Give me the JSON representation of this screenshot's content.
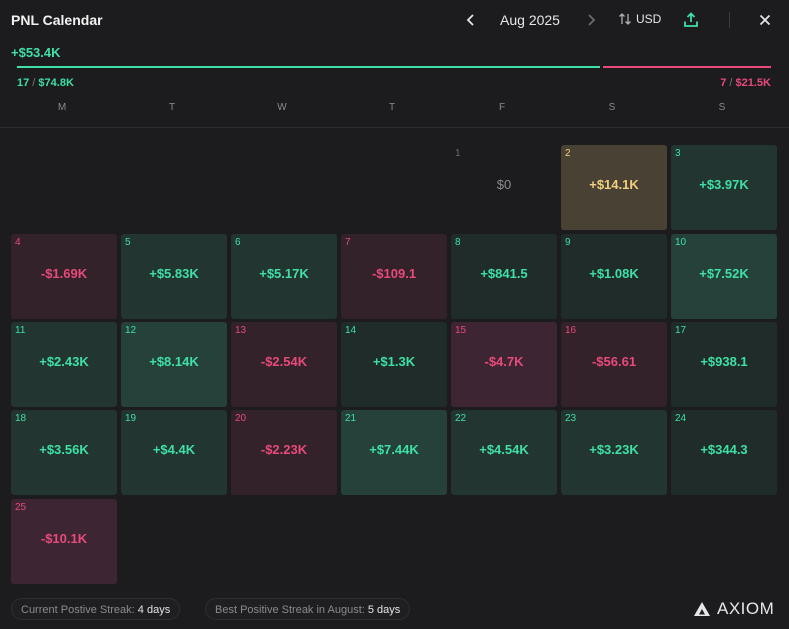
{
  "header": {
    "title": "PNL Calendar",
    "month": "Aug 2025",
    "currency": "USD"
  },
  "summary": {
    "total": "+$53.4K",
    "win_days": "17",
    "win_amount": "$74.8K",
    "loss_days": "7",
    "loss_amount": "$21.5K",
    "win_fraction": 0.777
  },
  "weekdays": [
    "M",
    "T",
    "W",
    "T",
    "F",
    "S",
    "S"
  ],
  "days": [
    {
      "day": "1",
      "value": "$0",
      "kind": "zero"
    },
    {
      "day": "2",
      "value": "+$14.1K",
      "kind": "gold"
    },
    {
      "day": "3",
      "value": "+$3.97K",
      "kind": "pos"
    },
    {
      "day": "4",
      "value": "-$1.69K",
      "kind": "neg"
    },
    {
      "day": "5",
      "value": "+$5.83K",
      "kind": "pos"
    },
    {
      "day": "6",
      "value": "+$5.17K",
      "kind": "pos"
    },
    {
      "day": "7",
      "value": "-$109.1",
      "kind": "neg"
    },
    {
      "day": "8",
      "value": "+$841.5",
      "kind": "pos"
    },
    {
      "day": "9",
      "value": "+$1.08K",
      "kind": "pos"
    },
    {
      "day": "10",
      "value": "+$7.52K",
      "kind": "pos"
    },
    {
      "day": "11",
      "value": "+$2.43K",
      "kind": "pos"
    },
    {
      "day": "12",
      "value": "+$8.14K",
      "kind": "pos"
    },
    {
      "day": "13",
      "value": "-$2.54K",
      "kind": "neg"
    },
    {
      "day": "14",
      "value": "+$1.3K",
      "kind": "pos"
    },
    {
      "day": "15",
      "value": "-$4.7K",
      "kind": "neg"
    },
    {
      "day": "16",
      "value": "-$56.61",
      "kind": "neg"
    },
    {
      "day": "17",
      "value": "+$938.1",
      "kind": "pos"
    },
    {
      "day": "18",
      "value": "+$3.56K",
      "kind": "pos"
    },
    {
      "day": "19",
      "value": "+$4.4K",
      "kind": "pos"
    },
    {
      "day": "20",
      "value": "-$2.23K",
      "kind": "neg"
    },
    {
      "day": "21",
      "value": "+$7.44K",
      "kind": "pos"
    },
    {
      "day": "22",
      "value": "+$4.54K",
      "kind": "pos"
    },
    {
      "day": "23",
      "value": "+$3.23K",
      "kind": "pos"
    },
    {
      "day": "24",
      "value": "+$344.3",
      "kind": "pos"
    },
    {
      "day": "25",
      "value": "-$10.1K",
      "kind": "neg"
    }
  ],
  "footer": {
    "current_streak_label": "Current Postive Streak:",
    "current_streak_value": "4 days",
    "best_streak_label": "Best Positive Streak in August:",
    "best_streak_value": "5 days",
    "logo_text": "AXIOM"
  },
  "colors": {
    "positive": "#3ee0a5",
    "negative": "#e84a7a",
    "highlight": "#f0cf7e",
    "background": "#1c1c1f"
  }
}
